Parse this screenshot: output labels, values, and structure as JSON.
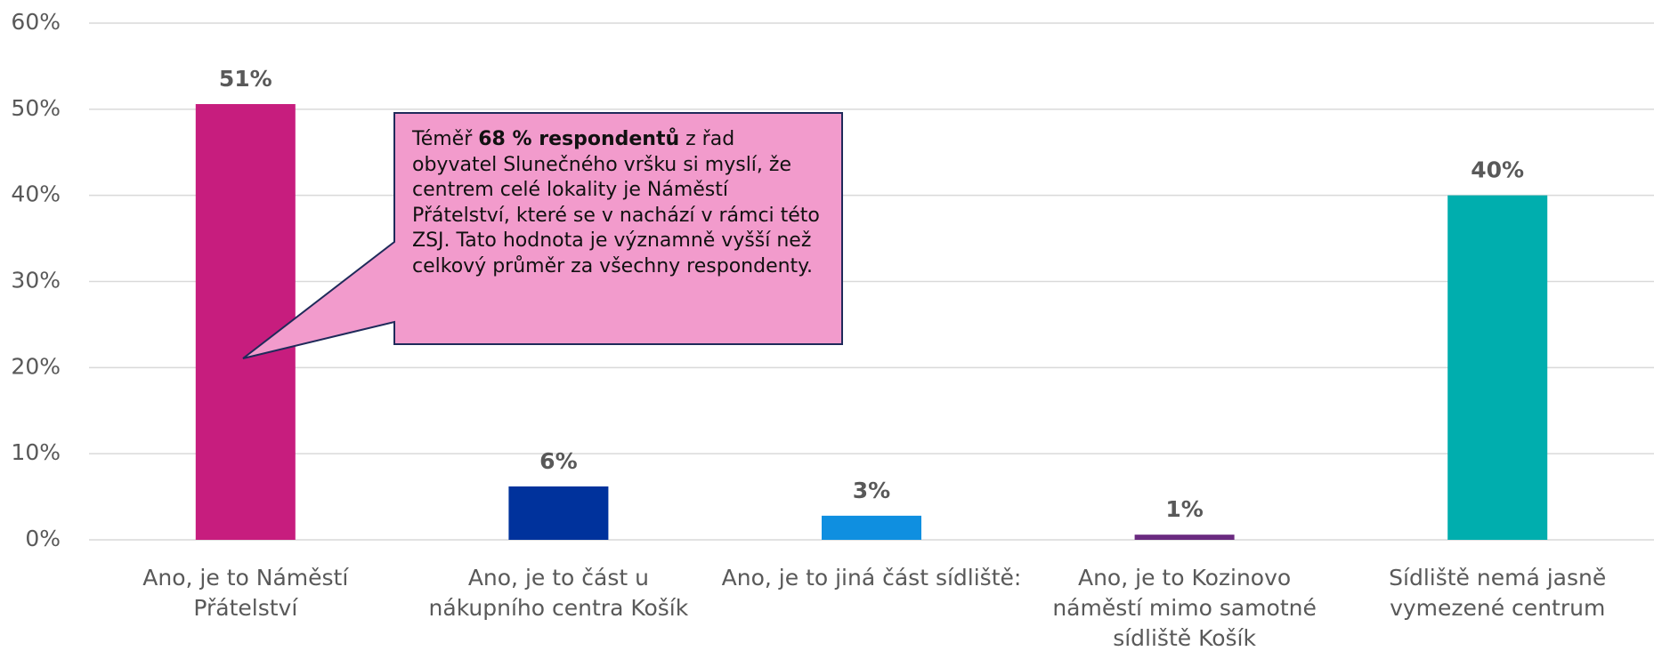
{
  "chart_data": {
    "type": "bar",
    "categories": [
      "Ano, je to Náměstí Přátelství",
      "Ano, je to část u nákupního centra Košík",
      "Ano, je to jiná část sídliště:",
      "Ano, je to Kozinovo náměstí mimo samotné sídliště Košík",
      "Sídliště nemá jasně vymezené centrum"
    ],
    "values": [
      50.6,
      6.2,
      2.8,
      0.6,
      40.0
    ],
    "value_labels": [
      "51%",
      "6%",
      "3%",
      "1%",
      "40%"
    ],
    "colors": [
      "#c71d7e",
      "#00329c",
      "#0f8fe0",
      "#6a2a80",
      "#00aeae"
    ],
    "ylim": [
      0,
      60
    ],
    "yticks": [
      {
        "value": 0,
        "label": "0%"
      },
      {
        "value": 10,
        "label": "10%"
      },
      {
        "value": 20,
        "label": "20%"
      },
      {
        "value": 30,
        "label": "30%"
      },
      {
        "value": 40,
        "label": "40%"
      },
      {
        "value": 50,
        "label": "50%"
      },
      {
        "value": 60,
        "label": "60%"
      }
    ],
    "grid": true,
    "annotation": {
      "parts": [
        "Téměř ",
        "68 % respondentů",
        " z řad obyvatel Slunečného vršku si myslí, že centrem celé lokality je Náměstí Přátelství, které se v nachází v rámci této ZSJ. Tato hodnota je významně vyšší než celkový průměr za všechny respondenty."
      ]
    }
  }
}
